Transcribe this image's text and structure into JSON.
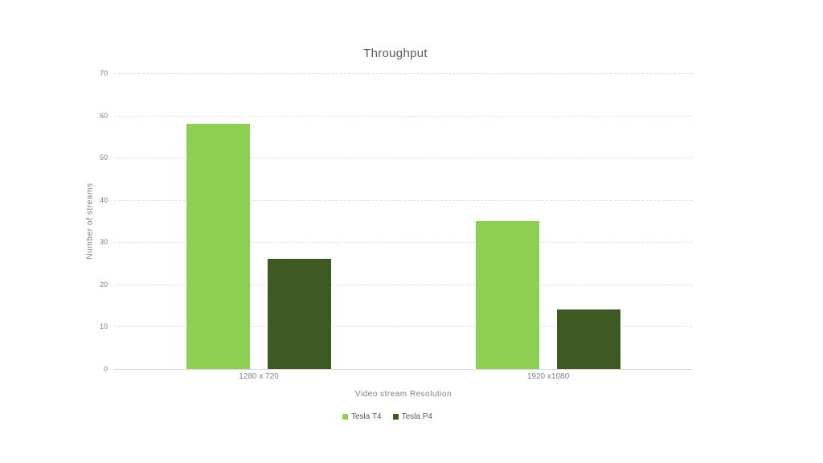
{
  "page": {
    "background_color": "#ffffff"
  },
  "chart_data": {
    "type": "bar",
    "title": "Throughput",
    "categories": [
      "1280 x 720",
      "1920 x1080"
    ],
    "series": [
      {
        "name": "Tesla T4",
        "color": "#8DCF50",
        "values": [
          58,
          35
        ]
      },
      {
        "name": "Tesla P4",
        "color": "#3C5A21",
        "values": [
          26,
          14
        ]
      }
    ],
    "xlabel": "Video stream Resolution",
    "ylabel": "Number of streams",
    "ylim": [
      0,
      70
    ],
    "yticks": [
      0,
      10,
      20,
      30,
      40,
      50,
      60,
      70
    ],
    "grid": "horizontal-dashed",
    "legend_position": "bottom",
    "colors": {
      "title_text": "#595959",
      "axis_text": "#7f7f7f",
      "gridline": "#e2e2e2",
      "baseline": "#d6d6d6"
    }
  }
}
